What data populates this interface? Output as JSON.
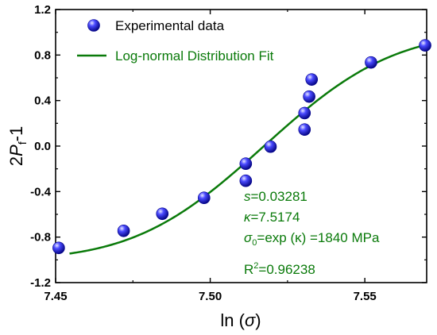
{
  "chart_data": {
    "type": "scatter",
    "xlabel": "ln (σ)",
    "ylabel": "2P_f-1",
    "xlim": [
      7.45,
      7.57
    ],
    "ylim": [
      -1.2,
      1.2
    ],
    "xticks": [
      "7.45",
      "7.50",
      "7.55"
    ],
    "yticks": [
      "-1.2",
      "-0.8",
      "-0.4",
      "0.0",
      "0.4",
      "0.8",
      "1.2"
    ],
    "legend_position": "top-left",
    "grid": false,
    "series": [
      {
        "name": "Experimental data",
        "kind": "scatter",
        "color": "#1a1aff",
        "points": [
          [
            7.451,
            -0.895
          ],
          [
            7.472,
            -0.745
          ],
          [
            7.4845,
            -0.595
          ],
          [
            7.498,
            -0.455
          ],
          [
            7.5115,
            -0.155
          ],
          [
            7.5115,
            -0.305
          ],
          [
            7.5195,
            -0.005
          ],
          [
            7.5305,
            0.145
          ],
          [
            7.5305,
            0.29
          ],
          [
            7.532,
            0.435
          ],
          [
            7.5328,
            0.585
          ],
          [
            7.552,
            0.735
          ],
          [
            7.5695,
            0.885
          ]
        ]
      },
      {
        "name": "Log-normal Distribution Fit",
        "kind": "line",
        "color": "#0a7a0a",
        "params": {
          "s": 0.03281,
          "kappa": 7.5174
        },
        "x_range": [
          7.4545,
          7.569
        ]
      }
    ],
    "annotations": {
      "s_label": "=0.03281",
      "kappa_label": "=7.5174",
      "sigma_line": "=exp (κ) =1840 MPa",
      "r2_label": "=0.96238"
    }
  }
}
